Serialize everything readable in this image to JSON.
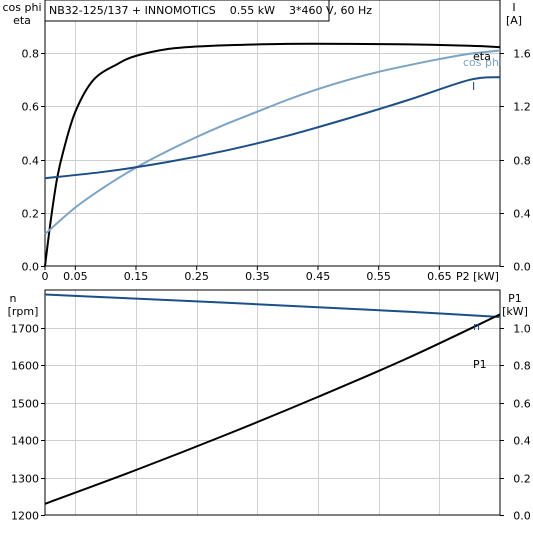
{
  "chart_data": [
    {
      "type": "line",
      "title": "NB32-125/137 + INNOMOTICS    0.55 kW    3*460 V, 60 Hz",
      "xlabel": "P2 [kW]",
      "xlim": [
        0,
        0.75
      ],
      "x_ticks": [
        0,
        0.05,
        0.15,
        0.25,
        0.35,
        0.45,
        0.55,
        0.65
      ],
      "x_tick_labels": [
        "0",
        "0.05",
        "0.15",
        "0.25",
        "0.35",
        "0.45",
        "0.55",
        "0.65"
      ],
      "ylabel_left": [
        "cos phi",
        "eta"
      ],
      "ylim_left": [
        0,
        1.0
      ],
      "y_ticks_left": [
        0,
        0.2,
        0.4,
        0.6,
        0.8
      ],
      "y_tick_labels_left": [
        "0.0",
        "0.2",
        "0.4",
        "0.6",
        "0.8"
      ],
      "ylabel_right": [
        "I",
        "[A]"
      ],
      "ylim_right": [
        0,
        2.0
      ],
      "y_ticks_right": [
        0,
        0.4,
        0.8,
        1.2,
        1.6
      ],
      "y_tick_labels_right": [
        "0.0",
        "0.4",
        "0.8",
        "1.2",
        "1.6"
      ],
      "grid": true,
      "series": [
        {
          "name": "eta",
          "axis": "left",
          "color": "#000000",
          "x": [
            0,
            0.01,
            0.02,
            0.03,
            0.05,
            0.08,
            0.12,
            0.15,
            0.2,
            0.25,
            0.3,
            0.4,
            0.5,
            0.6,
            0.7,
            0.75
          ],
          "y": [
            0,
            0.18,
            0.33,
            0.43,
            0.58,
            0.7,
            0.76,
            0.79,
            0.815,
            0.825,
            0.83,
            0.835,
            0.835,
            0.833,
            0.828,
            0.823
          ]
        },
        {
          "name": "cos phi",
          "axis": "left",
          "color": "#7aa3c4",
          "x": [
            0,
            0.05,
            0.1,
            0.15,
            0.2,
            0.25,
            0.3,
            0.35,
            0.4,
            0.45,
            0.5,
            0.55,
            0.6,
            0.65,
            0.7,
            0.75
          ],
          "y": [
            0.12,
            0.22,
            0.3,
            0.37,
            0.43,
            0.485,
            0.535,
            0.58,
            0.625,
            0.665,
            0.7,
            0.73,
            0.755,
            0.778,
            0.798,
            0.81
          ]
        },
        {
          "name": "I",
          "axis": "right",
          "color": "#1c4f87",
          "x": [
            0,
            0.1,
            0.2,
            0.3,
            0.4,
            0.5,
            0.6,
            0.7,
            0.75
          ],
          "y": [
            0.66,
            0.71,
            0.78,
            0.87,
            0.98,
            1.11,
            1.25,
            1.4,
            1.42
          ]
        }
      ]
    },
    {
      "type": "line",
      "xlim": [
        0,
        0.75
      ],
      "ylabel_left": [
        "n",
        "[rpm]"
      ],
      "ylim_left": [
        1200,
        1800
      ],
      "y_ticks_left": [
        1200,
        1300,
        1400,
        1500,
        1600,
        1700
      ],
      "y_tick_labels_left": [
        "1200",
        "1300",
        "1400",
        "1500",
        "1600",
        "1700"
      ],
      "ylabel_right": [
        "P1",
        "[kW]"
      ],
      "ylim_right": [
        0,
        1.2
      ],
      "y_ticks_right": [
        0,
        0.2,
        0.4,
        0.6,
        0.8,
        1.0
      ],
      "y_tick_labels_right": [
        "0.0",
        "0.2",
        "0.4",
        "0.6",
        "0.8",
        "1.0"
      ],
      "grid": true,
      "series": [
        {
          "name": "n",
          "axis": "left",
          "color": "#1c4f87",
          "x": [
            0,
            0.15,
            0.3,
            0.45,
            0.6,
            0.75
          ],
          "y": [
            1788,
            1777,
            1766,
            1754,
            1742,
            1728
          ]
        },
        {
          "name": "P1",
          "axis": "right",
          "color": "#000000",
          "x": [
            0,
            0.15,
            0.3,
            0.45,
            0.6,
            0.75
          ],
          "y": [
            0.06,
            0.24,
            0.43,
            0.63,
            0.84,
            1.07
          ]
        }
      ]
    }
  ]
}
